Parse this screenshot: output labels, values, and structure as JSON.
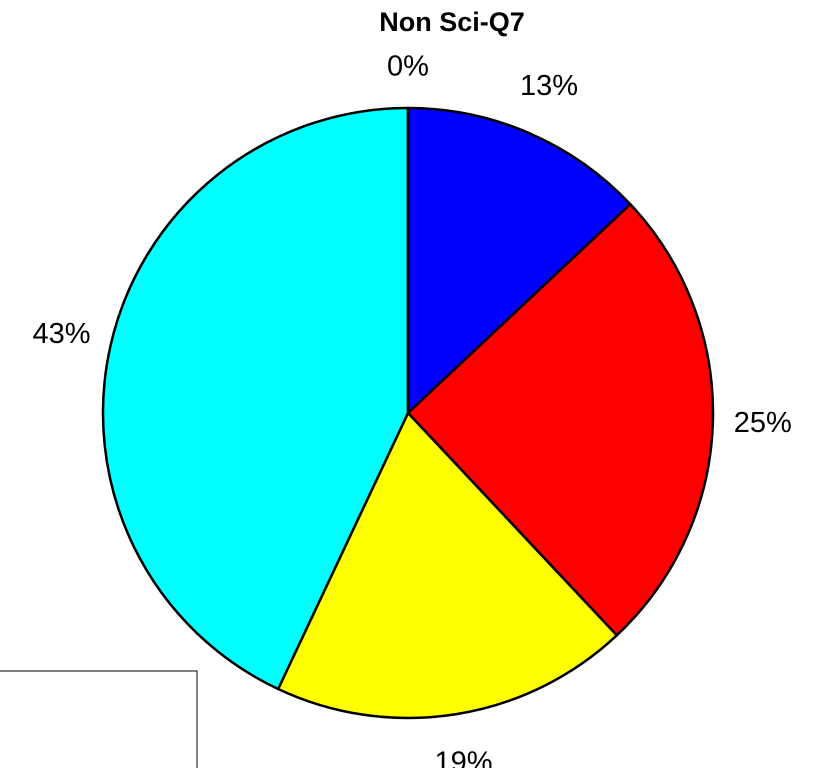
{
  "chart_data": {
    "type": "pie",
    "title": "Non Sci-Q7",
    "values": [
      13,
      25,
      19,
      43,
      0
    ],
    "value_labels": [
      "13%",
      "25%",
      "19%",
      "43%",
      "0%"
    ],
    "colors": [
      "#0000ff",
      "#ff0000",
      "#ffff00",
      "#00ffff",
      "#ff00ff"
    ],
    "legend": "bottom-left"
  }
}
